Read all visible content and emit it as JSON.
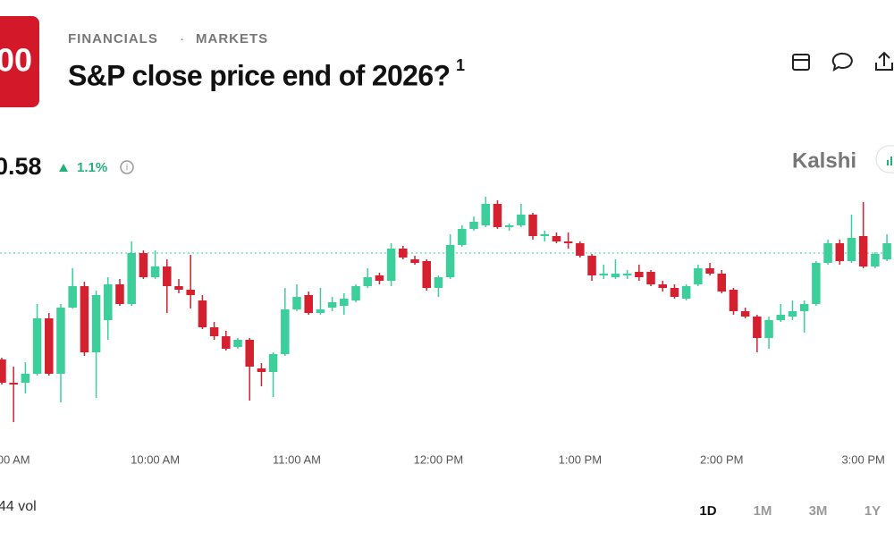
{
  "logo": "00",
  "breadcrumb": [
    "FINANCIALS",
    "MARKETS"
  ],
  "title": "S&P close price end of 2026?",
  "title_note": "1",
  "price": "0.58",
  "change": "1.1%",
  "brand": "Kalshi",
  "volume": "44 vol",
  "ranges": [
    "1D",
    "1M",
    "3M",
    "1Y"
  ],
  "chart_data": {
    "type": "candlestick",
    "x": [
      0,
      1,
      2,
      3,
      4,
      5,
      6,
      7,
      8,
      9,
      10,
      11,
      12,
      13,
      14,
      15,
      16,
      17,
      18,
      19,
      20,
      21,
      22,
      23,
      24,
      25,
      26,
      27,
      28,
      29,
      30,
      31,
      32,
      33,
      34,
      35,
      36,
      37,
      38,
      39,
      40,
      41,
      42,
      43,
      44,
      45,
      46,
      47,
      48,
      49,
      50,
      51,
      52,
      53,
      54,
      55,
      56,
      57,
      58,
      59,
      60,
      61,
      62,
      63,
      64,
      65,
      66,
      67,
      68,
      69,
      70,
      71,
      72,
      73,
      74,
      75
    ],
    "open": [
      98,
      72,
      72,
      82,
      144,
      82,
      156,
      180,
      106,
      142,
      182,
      160,
      217,
      190,
      202,
      180,
      176,
      164,
      134,
      124,
      112,
      120,
      88,
      84,
      104,
      154,
      170,
      150,
      156,
      158,
      164,
      180,
      192,
      186,
      222,
      210,
      208,
      178,
      190,
      226,
      244,
      248,
      272,
      246,
      248,
      260,
      236,
      236,
      230,
      228,
      214,
      192,
      190,
      192,
      196,
      196,
      182,
      178,
      166,
      182,
      200,
      194,
      176,
      152,
      146,
      122,
      142,
      146,
      152,
      160,
      206,
      228,
      208,
      236,
      202,
      210
    ],
    "close": [
      72,
      70,
      82,
      144,
      82,
      156,
      180,
      106,
      170,
      182,
      160,
      217,
      190,
      202,
      180,
      176,
      170,
      134,
      124,
      110,
      120,
      90,
      84,
      104,
      154,
      168,
      150,
      154,
      162,
      166,
      180,
      190,
      186,
      222,
      212,
      206,
      178,
      190,
      226,
      244,
      252,
      272,
      246,
      248,
      260,
      236,
      238,
      230,
      228,
      214,
      192,
      194,
      194,
      194,
      190,
      182,
      178,
      168,
      180,
      200,
      194,
      174,
      152,
      146,
      122,
      142,
      148,
      152,
      160,
      206,
      228,
      208,
      234,
      202,
      216,
      228
    ],
    "high": [
      100,
      90,
      95,
      160,
      150,
      160,
      200,
      185,
      175,
      190,
      188,
      230,
      220,
      220,
      210,
      188,
      215,
      170,
      140,
      130,
      122,
      122,
      94,
      106,
      178,
      182,
      174,
      178,
      168,
      172,
      182,
      200,
      195,
      228,
      225,
      214,
      210,
      192,
      238,
      248,
      258,
      280,
      276,
      250,
      272,
      262,
      242,
      240,
      240,
      230,
      216,
      204,
      210,
      198,
      204,
      198,
      186,
      182,
      182,
      204,
      206,
      198,
      178,
      156,
      148,
      146,
      160,
      164,
      164,
      208,
      232,
      232,
      260,
      274,
      218,
      238
    ],
    "low": [
      70,
      28,
      60,
      80,
      80,
      50,
      155,
      102,
      55,
      120,
      158,
      158,
      188,
      188,
      150,
      172,
      155,
      132,
      120,
      108,
      110,
      52,
      68,
      56,
      102,
      152,
      148,
      148,
      152,
      148,
      162,
      178,
      182,
      180,
      210,
      204,
      175,
      168,
      188,
      224,
      242,
      246,
      244,
      242,
      246,
      232,
      230,
      228,
      222,
      212,
      186,
      188,
      188,
      188,
      186,
      180,
      174,
      166,
      164,
      180,
      192,
      172,
      148,
      144,
      106,
      110,
      140,
      142,
      128,
      158,
      204,
      204,
      206,
      200,
      200,
      208
    ],
    "up_color": "#3ccf9b",
    "down_color": "#d4202f",
    "reference_value": 217,
    "xlim": [
      -0.15,
      75.6
    ],
    "ylim": [
      20,
      285
    ],
    "xticks": [
      {
        "value": 1,
        "label": "00 AM"
      },
      {
        "value": 13,
        "label": "10:00 AM"
      },
      {
        "value": 25,
        "label": "11:00 AM"
      },
      {
        "value": 37,
        "label": "12:00 PM"
      },
      {
        "value": 49,
        "label": "1:00 PM"
      },
      {
        "value": 61,
        "label": "2:00 PM"
      },
      {
        "value": 73,
        "label": "3:00 PM"
      }
    ]
  }
}
